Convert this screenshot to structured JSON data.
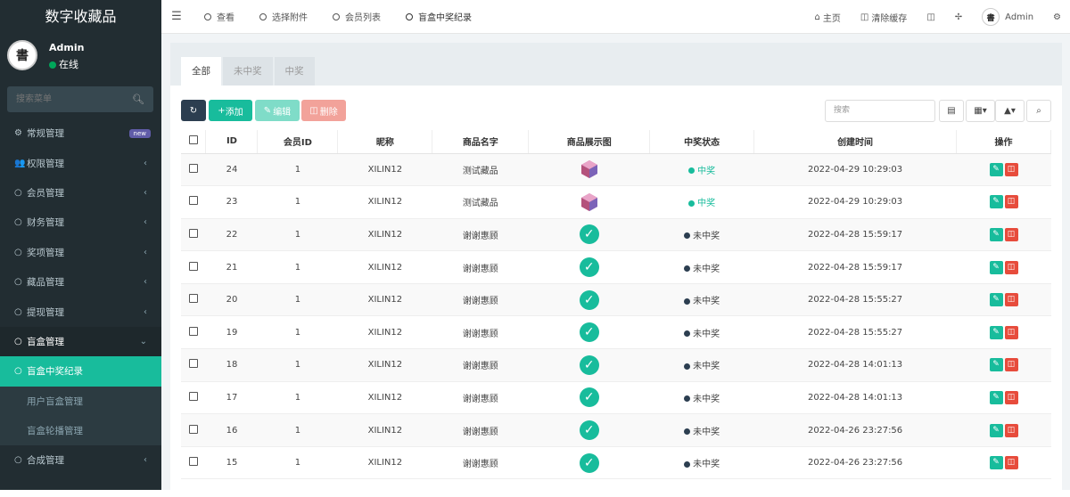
{
  "sidebar": {
    "brand": "数字收藏品",
    "user": {
      "avatar_text": "書",
      "name": "Admin",
      "status": "在线"
    },
    "search_placeholder": "搜索菜单",
    "items": [
      {
        "label": "常规管理",
        "icon": "cogs-icon",
        "badge": "new"
      },
      {
        "label": "权限管理",
        "icon": "users-icon",
        "arrow": "‹"
      },
      {
        "label": "会员管理",
        "icon": "circle-icon",
        "arrow": "‹"
      },
      {
        "label": "财务管理",
        "icon": "circle-icon",
        "arrow": "‹"
      },
      {
        "label": "奖项管理",
        "icon": "circle-icon",
        "arrow": "‹"
      },
      {
        "label": "藏品管理",
        "icon": "circle-icon",
        "arrow": "‹"
      },
      {
        "label": "提现管理",
        "icon": "circle-icon",
        "arrow": "‹"
      },
      {
        "label": "盲盒管理",
        "icon": "circle-icon",
        "arrow": "⌄"
      },
      {
        "label": "盲盒中奖纪录",
        "icon": "circle-icon"
      },
      {
        "label": "用户盲盒管理",
        "icon": "circle-icon"
      },
      {
        "label": "盲盒轮播管理",
        "icon": "circle-icon"
      },
      {
        "label": "合成管理",
        "icon": "circle-icon",
        "arrow": "‹"
      }
    ]
  },
  "topbar": {
    "tabs": [
      "查看",
      "选择附件",
      "会员列表",
      "盲盒中奖纪录"
    ],
    "right": {
      "home": "主页",
      "clear_cache": "清除缓存",
      "user": "Admin"
    }
  },
  "panel": {
    "tabs": [
      "全部",
      "未中奖",
      "中奖"
    ],
    "toolbar": {
      "add": "添加",
      "edit": "编辑",
      "delete": "删除",
      "search_placeholder": "搜索"
    },
    "columns": [
      "ID",
      "会员ID",
      "昵称",
      "商品名字",
      "商品展示图",
      "中奖状态",
      "创建时间",
      "操作"
    ],
    "rows": [
      {
        "id": "24",
        "member_id": "1",
        "nickname": "XILIN12",
        "product": "测试藏品",
        "image": "cube",
        "status": "中奖",
        "win": true,
        "time": "2022-04-29 10:29:03"
      },
      {
        "id": "23",
        "member_id": "1",
        "nickname": "XILIN12",
        "product": "测试藏品",
        "image": "cube",
        "status": "中奖",
        "win": true,
        "time": "2022-04-29 10:29:03"
      },
      {
        "id": "22",
        "member_id": "1",
        "nickname": "XILIN12",
        "product": "谢谢惠顾",
        "image": "check",
        "status": "未中奖",
        "win": false,
        "time": "2022-04-28 15:59:17"
      },
      {
        "id": "21",
        "member_id": "1",
        "nickname": "XILIN12",
        "product": "谢谢惠顾",
        "image": "check",
        "status": "未中奖",
        "win": false,
        "time": "2022-04-28 15:59:17"
      },
      {
        "id": "20",
        "member_id": "1",
        "nickname": "XILIN12",
        "product": "谢谢惠顾",
        "image": "check",
        "status": "未中奖",
        "win": false,
        "time": "2022-04-28 15:55:27"
      },
      {
        "id": "19",
        "member_id": "1",
        "nickname": "XILIN12",
        "product": "谢谢惠顾",
        "image": "check",
        "status": "未中奖",
        "win": false,
        "time": "2022-04-28 15:55:27"
      },
      {
        "id": "18",
        "member_id": "1",
        "nickname": "XILIN12",
        "product": "谢谢惠顾",
        "image": "check",
        "status": "未中奖",
        "win": false,
        "time": "2022-04-28 14:01:13"
      },
      {
        "id": "17",
        "member_id": "1",
        "nickname": "XILIN12",
        "product": "谢谢惠顾",
        "image": "check",
        "status": "未中奖",
        "win": false,
        "time": "2022-04-28 14:01:13"
      },
      {
        "id": "16",
        "member_id": "1",
        "nickname": "XILIN12",
        "product": "谢谢惠顾",
        "image": "check",
        "status": "未中奖",
        "win": false,
        "time": "2022-04-26 23:27:56"
      },
      {
        "id": "15",
        "member_id": "1",
        "nickname": "XILIN12",
        "product": "谢谢惠顾",
        "image": "check",
        "status": "未中奖",
        "win": false,
        "time": "2022-04-26 23:27:56"
      }
    ]
  },
  "colors": {
    "accent": "#18bc9c",
    "sidebar_bg": "#222d32",
    "danger": "#e74c3c",
    "dark": "#2c3e50"
  }
}
